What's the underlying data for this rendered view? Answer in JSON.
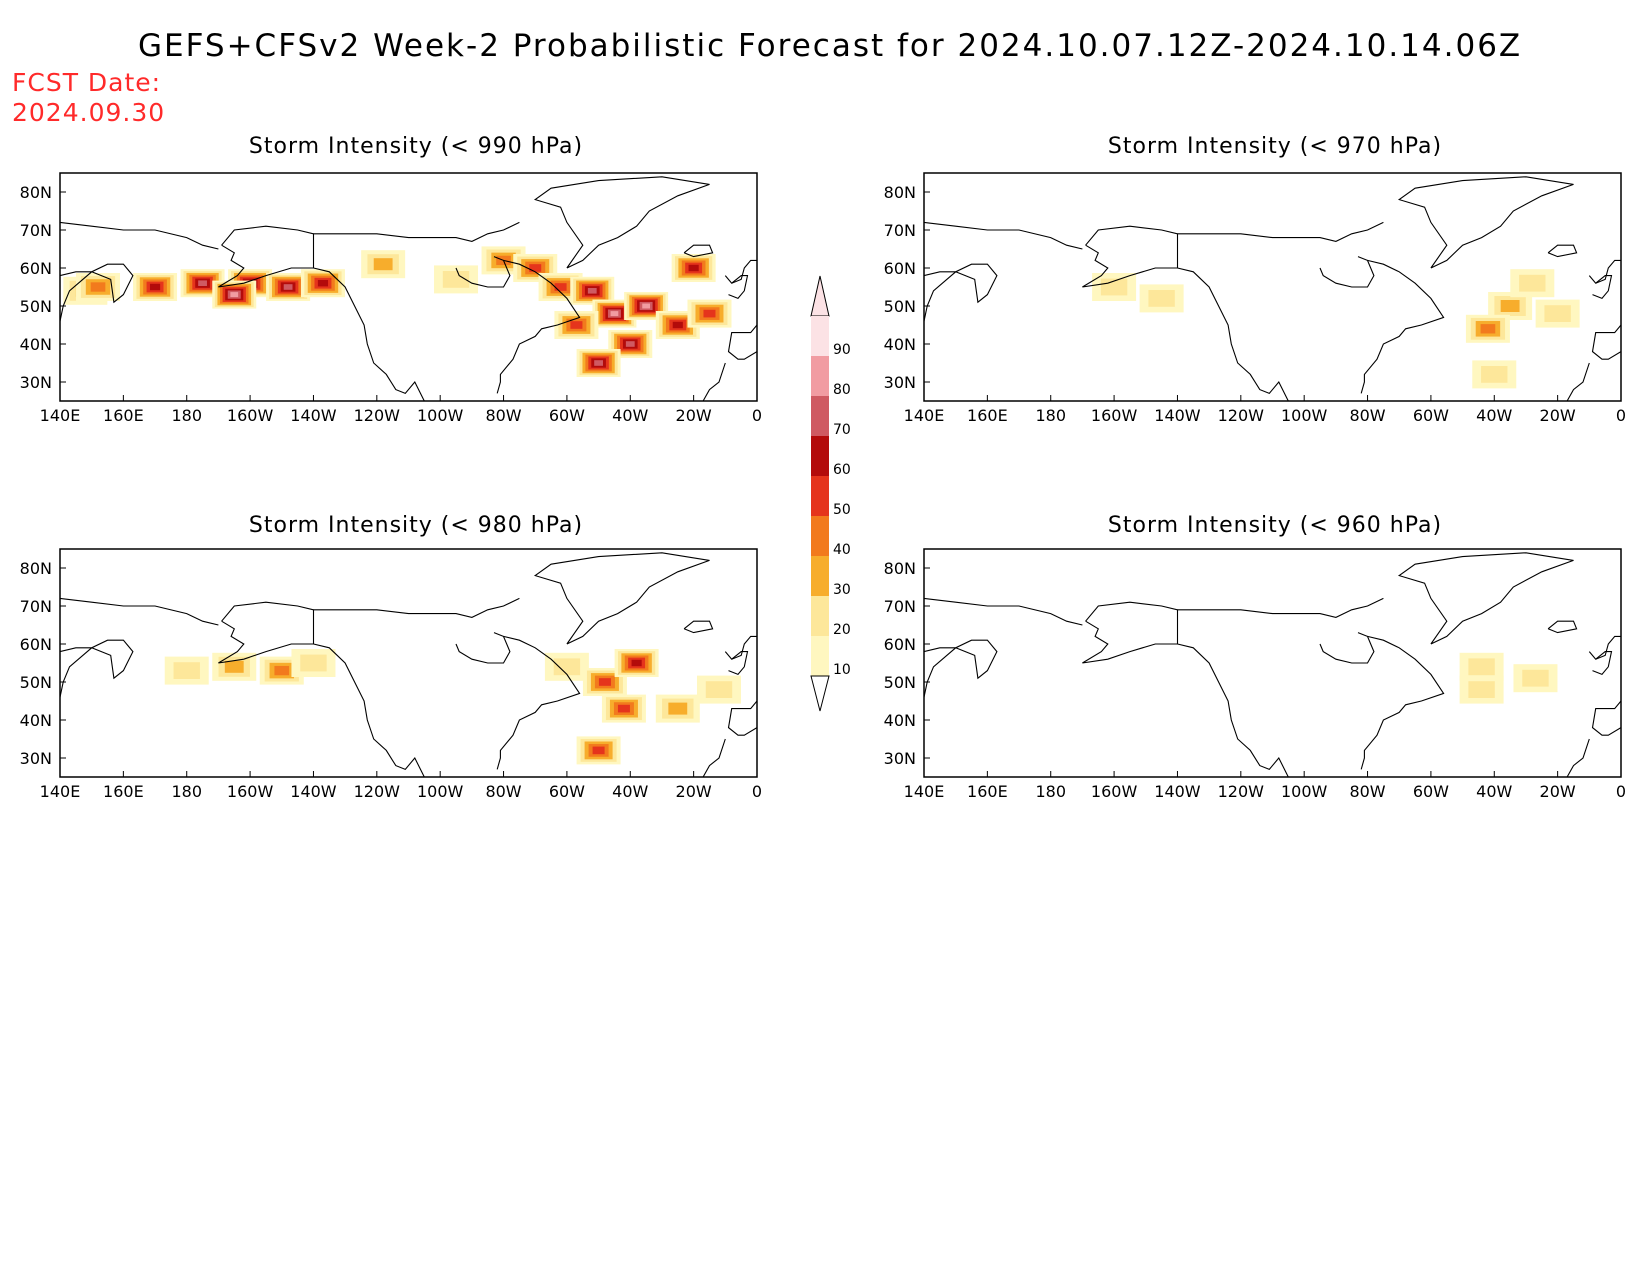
{
  "title": "GEFS+CFSv2 Week-2 Probabilistic Forecast for 2024.10.07.12Z-2024.10.14.06Z",
  "fcst_label": "FCST Date:",
  "fcst_date": "2024.09.30",
  "colorbar": {
    "ticks": [
      "10",
      "20",
      "30",
      "40",
      "50",
      "60",
      "70",
      "80",
      "90"
    ],
    "colors": [
      "#fff7c0",
      "#fde79a",
      "#f7ad2c",
      "#f27a1d",
      "#e5341c",
      "#b30b0b",
      "#cf5a62",
      "#f19ca2",
      "#fce2e5"
    ]
  },
  "axes": {
    "lon_labels": [
      "140E",
      "160E",
      "180",
      "160W",
      "140W",
      "120W",
      "100W",
      "80W",
      "60W",
      "40W",
      "20W",
      "0"
    ],
    "lat_labels": [
      "80N",
      "70N",
      "60N",
      "50N",
      "40N",
      "30N"
    ]
  },
  "panels": [
    {
      "title": "Storm Intensity (< 990 hPa)",
      "blobs": [
        {
          "lon": 148,
          "lat": 54,
          "level": 2
        },
        {
          "lon": 152,
          "lat": 55,
          "level": 3
        },
        {
          "lon": 170,
          "lat": 55,
          "level": 5
        },
        {
          "lon": 185,
          "lat": 56,
          "level": 6
        },
        {
          "lon": 200,
          "lat": 56,
          "level": 6
        },
        {
          "lon": 212,
          "lat": 55,
          "level": 6
        },
        {
          "lon": 195,
          "lat": 53,
          "level": 7
        },
        {
          "lon": 223,
          "lat": 56,
          "level": 5
        },
        {
          "lon": 242,
          "lat": 61,
          "level": 2
        },
        {
          "lon": 265,
          "lat": 57,
          "level": 1
        },
        {
          "lon": 280,
          "lat": 62,
          "level": 3
        },
        {
          "lon": 290,
          "lat": 60,
          "level": 4
        },
        {
          "lon": 298,
          "lat": 55,
          "level": 4
        },
        {
          "lon": 308,
          "lat": 54,
          "level": 6
        },
        {
          "lon": 315,
          "lat": 48,
          "level": 7
        },
        {
          "lon": 320,
          "lat": 40,
          "level": 6
        },
        {
          "lon": 325,
          "lat": 50,
          "level": 7
        },
        {
          "lon": 335,
          "lat": 45,
          "level": 5
        },
        {
          "lon": 345,
          "lat": 48,
          "level": 4
        },
        {
          "lon": 310,
          "lat": 35,
          "level": 6
        },
        {
          "lon": 303,
          "lat": 45,
          "level": 4
        },
        {
          "lon": 340,
          "lat": 60,
          "level": 5
        }
      ]
    },
    {
      "title": "Storm Intensity (< 970 hPa)",
      "blobs": [
        {
          "lon": 200,
          "lat": 55,
          "level": 1
        },
        {
          "lon": 215,
          "lat": 52,
          "level": 1
        },
        {
          "lon": 325,
          "lat": 50,
          "level": 2
        },
        {
          "lon": 318,
          "lat": 44,
          "level": 3
        },
        {
          "lon": 332,
          "lat": 56,
          "level": 1
        },
        {
          "lon": 340,
          "lat": 48,
          "level": 1
        },
        {
          "lon": 320,
          "lat": 32,
          "level": 1
        }
      ]
    },
    {
      "title": "Storm Intensity (< 980 hPa)",
      "blobs": [
        {
          "lon": 180,
          "lat": 53,
          "level": 1
        },
        {
          "lon": 195,
          "lat": 54,
          "level": 2
        },
        {
          "lon": 210,
          "lat": 53,
          "level": 3
        },
        {
          "lon": 220,
          "lat": 55,
          "level": 1
        },
        {
          "lon": 300,
          "lat": 54,
          "level": 1
        },
        {
          "lon": 312,
          "lat": 50,
          "level": 4
        },
        {
          "lon": 322,
          "lat": 55,
          "level": 5
        },
        {
          "lon": 318,
          "lat": 43,
          "level": 4
        },
        {
          "lon": 310,
          "lat": 32,
          "level": 4
        },
        {
          "lon": 335,
          "lat": 43,
          "level": 2
        },
        {
          "lon": 348,
          "lat": 48,
          "level": 1
        }
      ]
    },
    {
      "title": "Storm Intensity (< 960 hPa)",
      "blobs": [
        {
          "lon": 316,
          "lat": 48,
          "level": 1
        },
        {
          "lon": 333,
          "lat": 51,
          "level": 1
        },
        {
          "lon": 316,
          "lat": 54,
          "level": 1
        }
      ]
    }
  ]
}
